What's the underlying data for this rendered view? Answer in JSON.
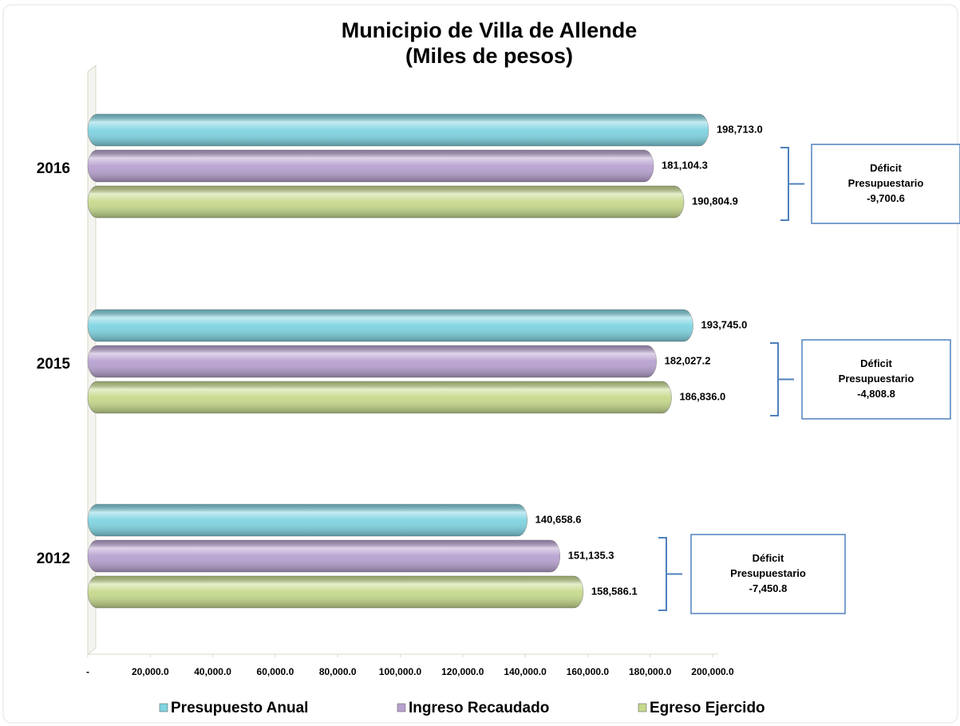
{
  "chart_data": {
    "type": "bar",
    "orientation": "horizontal",
    "title": "Municipio de Villa de Allende",
    "subtitle": "(Miles de pesos)",
    "categories": [
      "2016",
      "2015",
      "2012"
    ],
    "series": [
      {
        "name": "Presupuesto Anual",
        "color": "#7fd4e2",
        "values": [
          198713.0,
          193745.0,
          140658.6
        ],
        "value_labels": [
          "198,713.0",
          "193,745.0",
          "140,658.6"
        ]
      },
      {
        "name": "Ingreso Recaudado",
        "color": "#b8a1d0",
        "values": [
          181104.3,
          182027.2,
          151135.3
        ],
        "value_labels": [
          "181,104.3",
          "182,027.2",
          "151,135.3"
        ]
      },
      {
        "name": "Egreso Ejercido",
        "color": "#c6da8c",
        "values": [
          190804.9,
          186836.0,
          158586.1
        ],
        "value_labels": [
          "190,804.9",
          "186,836.0",
          "158,586.1"
        ]
      }
    ],
    "xlim": [
      0,
      200000
    ],
    "xticks": [
      {
        "value": 0,
        "label": "-"
      },
      {
        "value": 20000,
        "label": "20,000.0"
      },
      {
        "value": 40000,
        "label": "40,000.0"
      },
      {
        "value": 60000,
        "label": "60,000.0"
      },
      {
        "value": 80000,
        "label": "80,000.0"
      },
      {
        "value": 100000,
        "label": "100,000.0"
      },
      {
        "value": 120000,
        "label": "120,000.0"
      },
      {
        "value": 140000,
        "label": "140,000.0"
      },
      {
        "value": 160000,
        "label": "160,000.0"
      },
      {
        "value": 180000,
        "label": "180,000.0"
      },
      {
        "value": 200000,
        "label": "200,000.0"
      }
    ],
    "annotations": [
      {
        "title": "Déficit",
        "subtitle": "Presupuestario",
        "value_label": "-9,700.6"
      },
      {
        "title": "Déficit",
        "subtitle": "Presupuestario",
        "value_label": "-4,808.8"
      },
      {
        "title": "Déficit",
        "subtitle": "Presupuestario",
        "value_label": "-7,450.8"
      }
    ],
    "legend": "bottom"
  }
}
